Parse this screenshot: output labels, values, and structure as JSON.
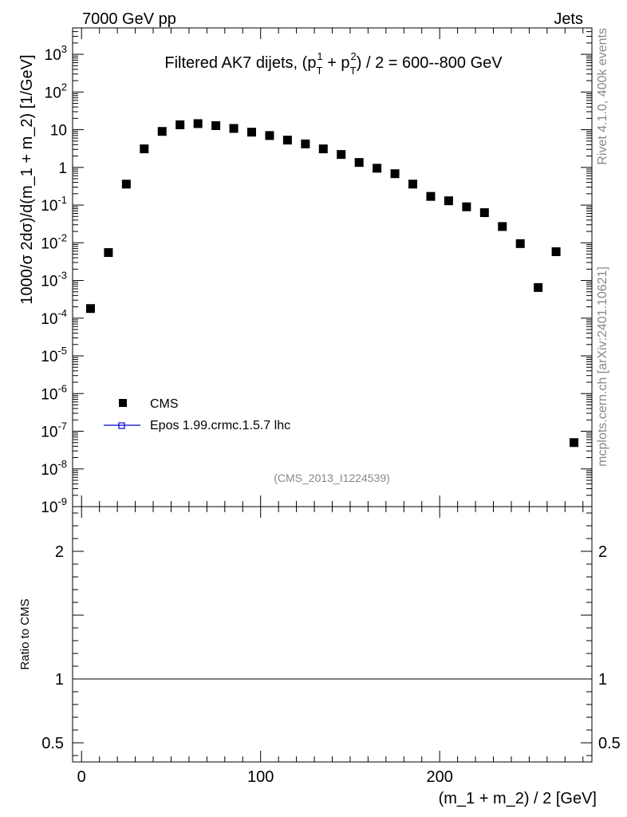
{
  "header": {
    "left": "7000 GeV pp",
    "right": "Jets"
  },
  "side": {
    "rivet": "Rivet 4.1.0,  400k events",
    "mcplots": "mcplots.cern.ch [arXiv:2401.10621]"
  },
  "legend": {
    "data_label": "CMS",
    "mc_label": "Epos 1.99.crmc.1.5.7 lhc"
  },
  "ratio_ylabel": "Ratio to CMS",
  "colors": {
    "data": "#000000",
    "mc": "#0000cc",
    "watermark": "#888888"
  },
  "chart_data": [
    {
      "type": "scatter",
      "title_parts": {
        "pre": "Filtered AK7 dijets, (p",
        "sub1": "T",
        "sup1": "1",
        "mid": " + p",
        "sub2": "T",
        "sup2": "2",
        "post": ") / 2 = 600--800 GeV"
      },
      "watermark": "(CMS_2013_I1224539)",
      "ylabel": "1000/σ  2dσ)/d(m_1 + m_2) [1/GeV]",
      "xlabel": "(m_1 + m_2) / 2 [GeV]",
      "xlim": [
        -5,
        285
      ],
      "ylim_log10": [
        -9,
        3.7
      ],
      "yscale": "log",
      "ytick_labels": [
        {
          "exp": -9,
          "label": "10",
          "sup": "-9"
        },
        {
          "exp": -8,
          "label": "10",
          "sup": "-8"
        },
        {
          "exp": -7,
          "label": "10",
          "sup": "-7"
        },
        {
          "exp": -6,
          "label": "10",
          "sup": "-6"
        },
        {
          "exp": -5,
          "label": "10",
          "sup": "-5"
        },
        {
          "exp": -4,
          "label": "10",
          "sup": "-4"
        },
        {
          "exp": -3,
          "label": "10",
          "sup": "-3"
        },
        {
          "exp": -2,
          "label": "10",
          "sup": "-2"
        },
        {
          "exp": -1,
          "label": "10",
          "sup": "-1"
        },
        {
          "exp": 0,
          "label": "1",
          "sup": ""
        },
        {
          "exp": 1,
          "label": "10",
          "sup": ""
        },
        {
          "exp": 2,
          "label": "10",
          "sup": "2"
        },
        {
          "exp": 3,
          "label": "10",
          "sup": "3"
        }
      ],
      "series": [
        {
          "name": "CMS",
          "x": [
            5,
            15,
            25,
            35,
            45,
            55,
            65,
            75,
            85,
            95,
            105,
            115,
            125,
            135,
            145,
            155,
            165,
            175,
            185,
            195,
            205,
            215,
            225,
            235,
            245,
            255,
            265,
            275
          ],
          "y": [
            0.00018,
            0.0055,
            0.36,
            3.1,
            9.0,
            13.5,
            14.5,
            12.8,
            10.8,
            8.6,
            7.0,
            5.3,
            4.2,
            3.1,
            2.2,
            1.35,
            0.95,
            0.68,
            0.36,
            0.17,
            0.13,
            0.09,
            0.063,
            0.027,
            0.0095,
            0.00065,
            0.0058,
            5e-08
          ]
        }
      ]
    },
    {
      "type": "line",
      "ylabel": "Ratio to CMS",
      "xlim": [
        -5,
        285
      ],
      "ylim": [
        0.35,
        2.35
      ],
      "xticks": [
        0,
        100,
        200
      ],
      "xtick_labels": [
        "0",
        "100",
        "200"
      ],
      "yticks": [
        0.5,
        1,
        2
      ],
      "ytick_labels": [
        "0.5",
        "1",
        "2"
      ],
      "reference_line": 1
    }
  ]
}
